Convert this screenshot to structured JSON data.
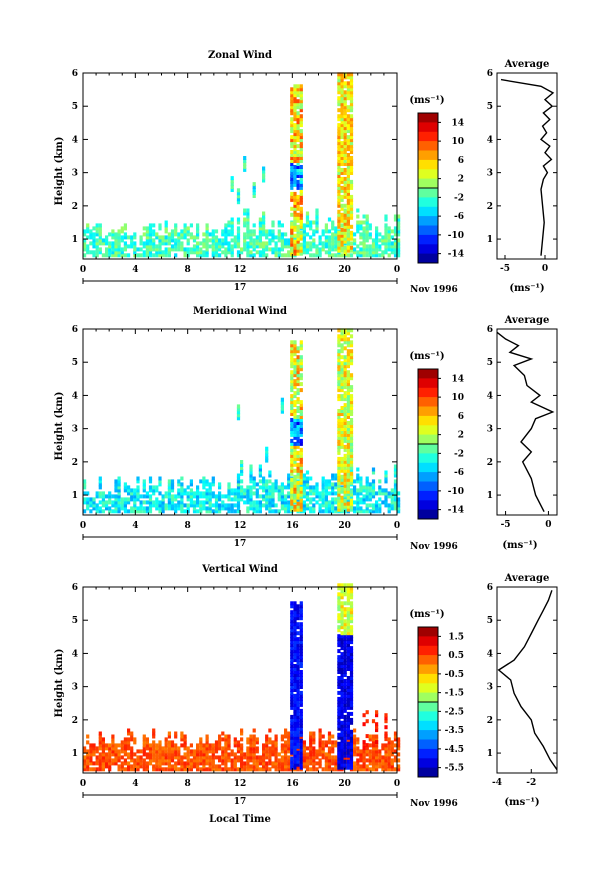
{
  "date_label": "Nov 1996",
  "local_time_label": "Local Time",
  "day_label": "17",
  "panels": [
    {
      "title": "Zonal Wind",
      "ylabel": "Height (km)",
      "unit_label": "(ms⁻¹)",
      "colorbar_ticks": [
        "14",
        "10",
        "6",
        "2",
        "-2",
        "-6",
        "-10",
        "-14"
      ],
      "avg_title": "Average",
      "avg_unit": "(ms⁻¹)",
      "avg_xticks": [
        "-5",
        "0"
      ]
    },
    {
      "title": "Meridional Wind",
      "ylabel": "Height (km)",
      "unit_label": "(ms⁻¹)",
      "colorbar_ticks": [
        "14",
        "10",
        "6",
        "2",
        "-2",
        "-6",
        "-10",
        "-14"
      ],
      "avg_title": "Average",
      "avg_unit": "(ms⁻¹)",
      "avg_xticks": [
        "-5",
        "0"
      ]
    },
    {
      "title": "Vertical Wind",
      "ylabel": "Height (km)",
      "unit_label": "(ms⁻¹)",
      "colorbar_ticks": [
        "1.5",
        "0.5",
        "-0.5",
        "-1.5",
        "-2.5",
        "-3.5",
        "-4.5",
        "-5.5"
      ],
      "avg_title": "Average",
      "avg_unit": "(ms⁻¹)",
      "avg_xticks": [
        "-4",
        "-2"
      ]
    }
  ],
  "chart_data": [
    {
      "type": "heatmap",
      "title": "Zonal Wind",
      "ylabel": "Height (km)",
      "xlabel": "",
      "x_ticks": [
        "0",
        "4",
        "8",
        "12",
        "16",
        "20",
        "0"
      ],
      "y_ticks": [
        "1",
        "2",
        "3",
        "4",
        "5",
        "6"
      ],
      "xlim": [
        0,
        24
      ],
      "ylim": [
        0.4,
        6
      ],
      "colorbar": {
        "ticks": [
          14,
          10,
          6,
          2,
          -2,
          -6,
          -10,
          -14
        ],
        "range": [
          -16,
          16
        ]
      },
      "average_profile": {
        "xlim": [
          -6,
          1.5
        ],
        "heights": [
          0.5,
          1.0,
          1.5,
          2.0,
          2.5,
          2.8,
          3.0,
          3.2,
          3.4,
          3.6,
          3.8,
          4.0,
          4.2,
          4.4,
          4.6,
          4.8,
          5.0,
          5.2,
          5.4,
          5.6,
          5.8
        ],
        "values": [
          -0.5,
          -0.3,
          -0.1,
          -0.3,
          -0.5,
          -0.2,
          0.3,
          -0.2,
          0.8,
          0.0,
          0.6,
          -0.5,
          0.2,
          -0.3,
          0.6,
          -0.2,
          0.9,
          0.0,
          1.0,
          -0.5,
          -5.5
        ]
      }
    },
    {
      "type": "heatmap",
      "title": "Meridional Wind",
      "ylabel": "Height (km)",
      "xlabel": "",
      "x_ticks": [
        "0",
        "4",
        "8",
        "12",
        "16",
        "20",
        "0"
      ],
      "y_ticks": [
        "1",
        "2",
        "3",
        "4",
        "5",
        "6"
      ],
      "xlim": [
        0,
        24
      ],
      "ylim": [
        0.4,
        6
      ],
      "colorbar": {
        "ticks": [
          14,
          10,
          6,
          2,
          -2,
          -6,
          -10,
          -14
        ],
        "range": [
          -16,
          16
        ]
      },
      "average_profile": {
        "xlim": [
          -6,
          1
        ],
        "heights": [
          0.5,
          1.0,
          1.5,
          2.0,
          2.3,
          2.6,
          3.0,
          3.3,
          3.5,
          3.8,
          4.0,
          4.3,
          4.6,
          4.9,
          5.1,
          5.3,
          5.5,
          5.7,
          5.9
        ],
        "values": [
          -0.5,
          -1.5,
          -2.0,
          -3.0,
          -2.0,
          -3.2,
          -2.0,
          -1.5,
          0.5,
          -2.0,
          -1.0,
          -2.5,
          -2.8,
          -4.0,
          -2.0,
          -4.5,
          -3.5,
          -5.0,
          -6.0
        ]
      }
    },
    {
      "type": "heatmap",
      "title": "Vertical Wind",
      "ylabel": "Height (km)",
      "xlabel": "Local Time",
      "x_ticks": [
        "0",
        "4",
        "8",
        "12",
        "16",
        "20",
        "0"
      ],
      "y_ticks": [
        "1",
        "2",
        "3",
        "4",
        "5",
        "6"
      ],
      "xlim": [
        0,
        24
      ],
      "ylim": [
        0.4,
        6
      ],
      "colorbar": {
        "ticks": [
          1.5,
          0.5,
          -0.5,
          -1.5,
          -2.5,
          -3.5,
          -4.5,
          -5.5
        ],
        "range": [
          -6,
          2
        ]
      },
      "average_profile": {
        "xlim": [
          -4,
          -0.5
        ],
        "heights": [
          0.5,
          0.8,
          1.2,
          1.6,
          2.0,
          2.4,
          2.8,
          3.2,
          3.5,
          3.8,
          4.2,
          4.6,
          5.0,
          5.3,
          5.6,
          5.9
        ],
        "values": [
          -0.5,
          -0.9,
          -1.3,
          -1.8,
          -2.0,
          -2.6,
          -3.0,
          -3.2,
          -3.9,
          -3.0,
          -2.4,
          -2.0,
          -1.6,
          -1.3,
          -1.0,
          -0.8
        ]
      }
    }
  ]
}
